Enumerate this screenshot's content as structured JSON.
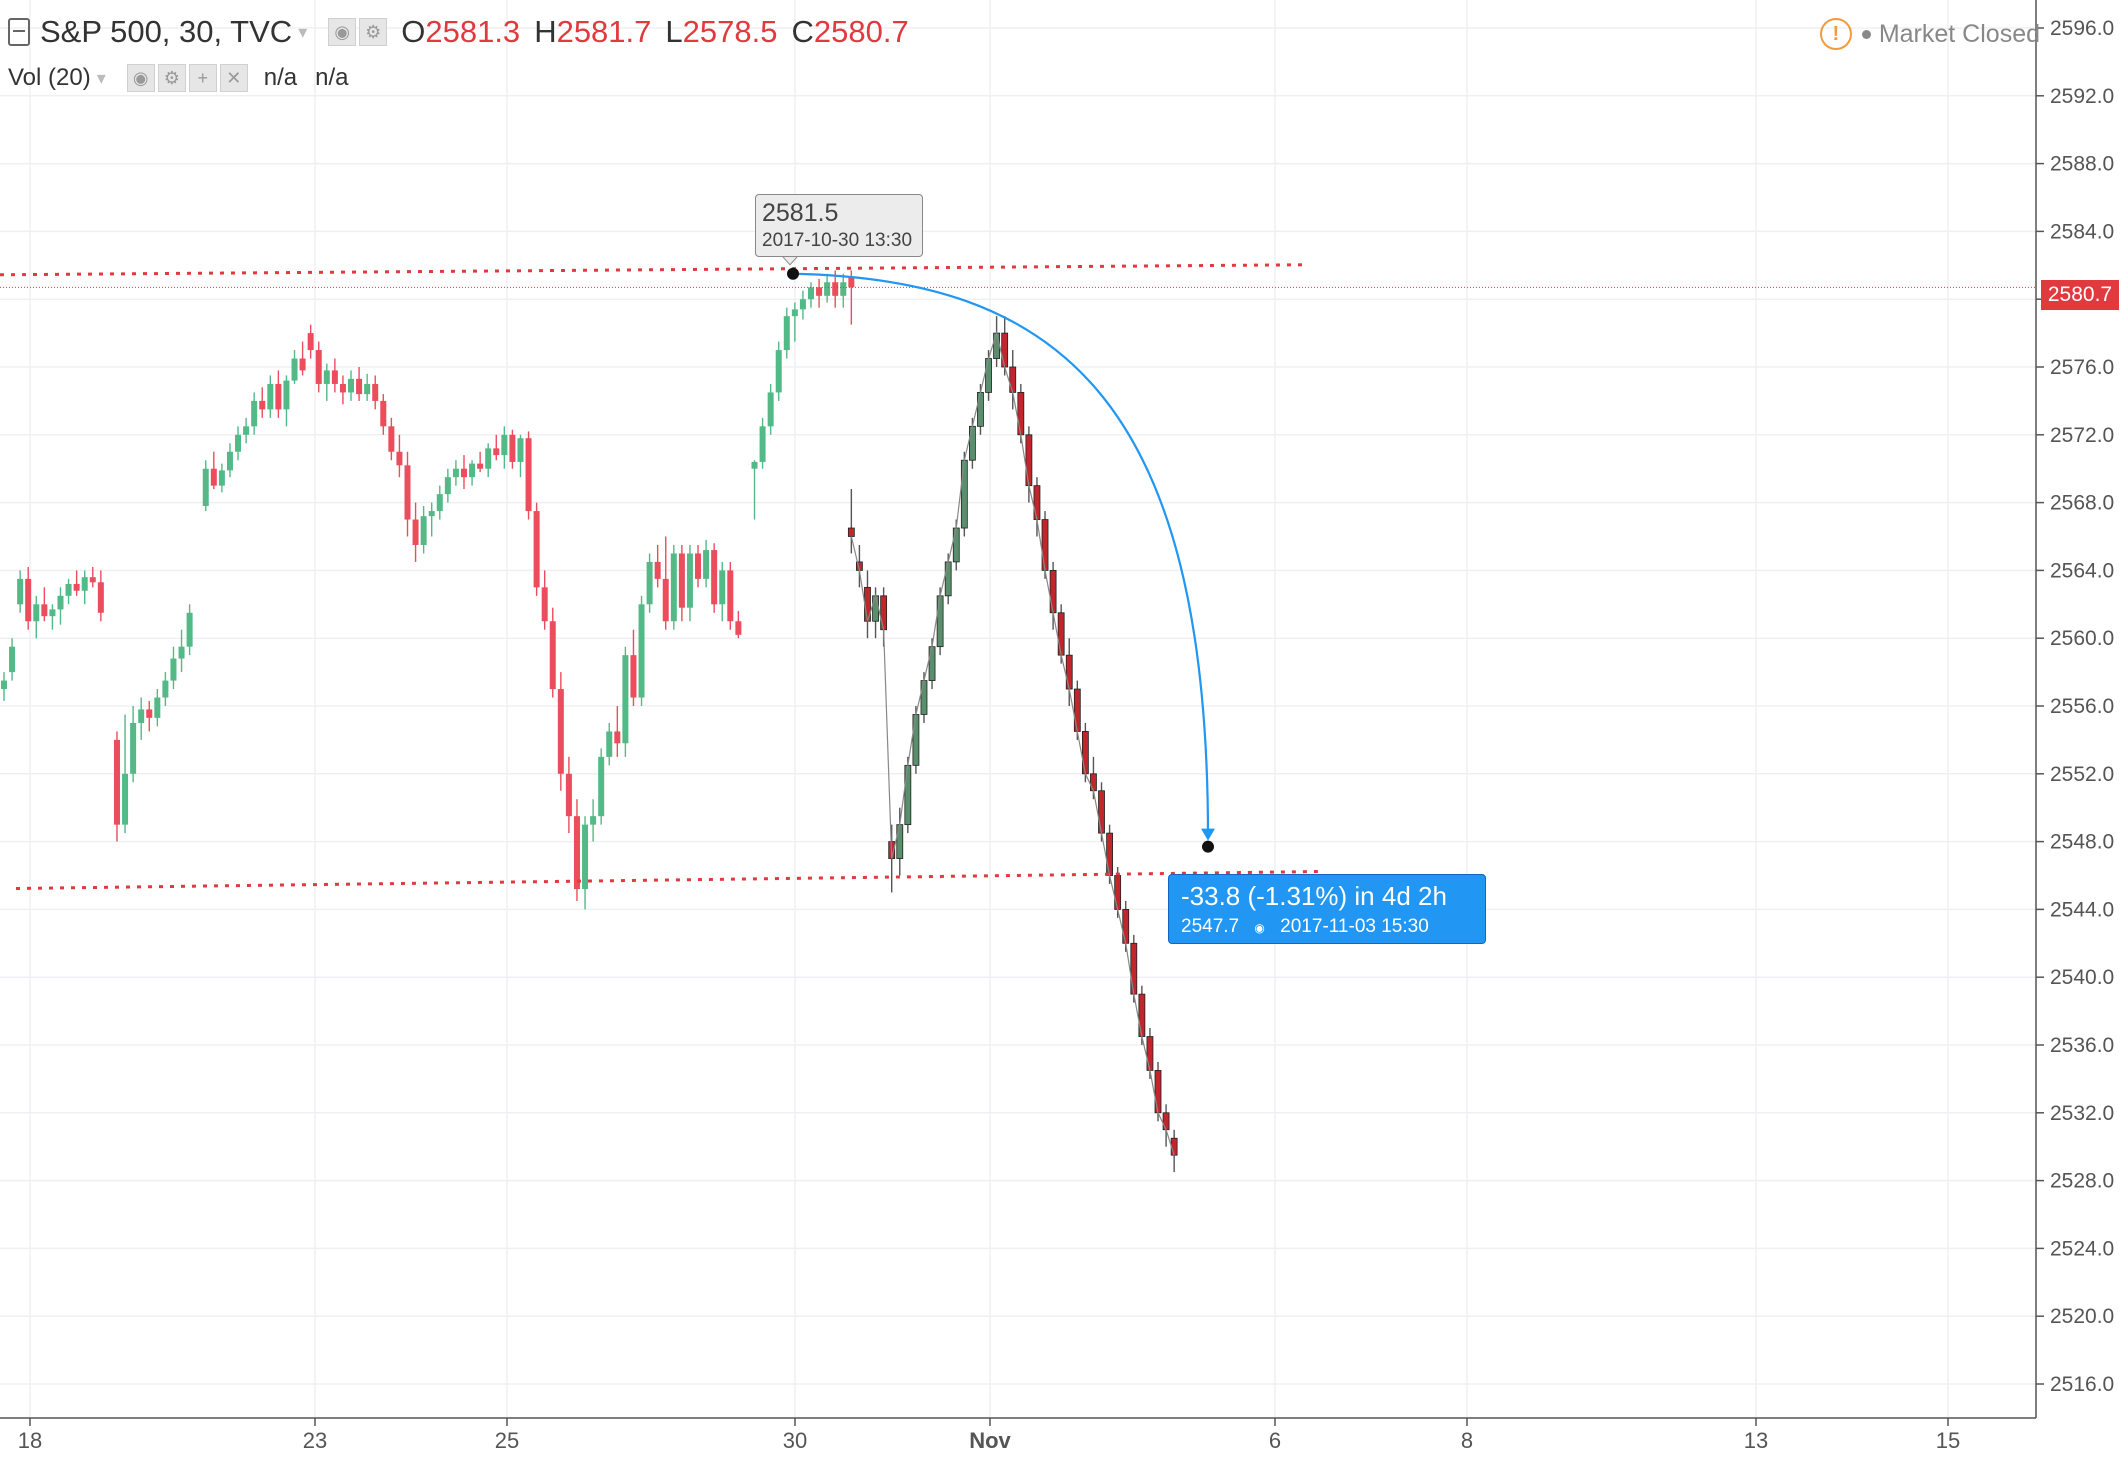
{
  "header": {
    "symbol": "S&P 500, 30, TVC",
    "ohlc": [
      {
        "key": "O",
        "value": "2581.3"
      },
      {
        "key": "H",
        "value": "2581.7"
      },
      {
        "key": "L",
        "value": "2578.5"
      },
      {
        "key": "C",
        "value": "2580.7"
      }
    ],
    "volume_label": "Vol (20)",
    "volume_values": [
      "n/a",
      "n/a"
    ],
    "market_status": "Market Closed"
  },
  "tooltip_high": {
    "price": "2581.5",
    "datetime": "2017-10-30 13:30"
  },
  "measure": {
    "change": "-33.8 (-1.31%) in 4d 2h",
    "price": "2547.7",
    "datetime": "2017-11-03  15:30"
  },
  "last_price": "2580.7",
  "colors": {
    "up": "#53b987",
    "down": "#eb4d5c",
    "down_dark": "#c0262b",
    "drawing_red": "#e0393e",
    "drawing_blue": "#2196f3"
  },
  "chart_data": {
    "type": "candlestick",
    "title": "S&P 500, 30, TVC",
    "yaxis_ticks": [
      "2596.0",
      "2592.0",
      "2588.0",
      "2584.0",
      "2580.0",
      "2576.0",
      "2572.0",
      "2568.0",
      "2564.0",
      "2560.0",
      "2556.0",
      "2552.0",
      "2548.0",
      "2544.0",
      "2540.0",
      "2536.0",
      "2532.0",
      "2528.0",
      "2524.0",
      "2520.0",
      "2516.0"
    ],
    "xaxis_ticks": [
      "18",
      "23",
      "25",
      "30",
      "Nov",
      "6",
      "8",
      "13",
      "15"
    ],
    "ylim": [
      2513,
      2598
    ],
    "grid": true,
    "candles": [
      {
        "t": 0,
        "o": 2557.0,
        "h": 2558.0,
        "l": 2556.3,
        "c": 2557.5
      },
      {
        "t": 1,
        "o": 2558.0,
        "h": 2560.0,
        "l": 2557.5,
        "c": 2559.5
      },
      {
        "t": 2,
        "o": 2562.0,
        "h": 2564.0,
        "l": 2561.5,
        "c": 2563.5
      },
      {
        "t": 3,
        "o": 2563.5,
        "h": 2564.2,
        "l": 2560.5,
        "c": 2561.0
      },
      {
        "t": 4,
        "o": 2561.0,
        "h": 2562.5,
        "l": 2560.0,
        "c": 2562.0
      },
      {
        "t": 5,
        "o": 2562.0,
        "h": 2563.0,
        "l": 2561.0,
        "c": 2561.3
      },
      {
        "t": 6,
        "o": 2561.3,
        "h": 2562.0,
        "l": 2560.5,
        "c": 2561.7
      },
      {
        "t": 7,
        "o": 2561.7,
        "h": 2563.0,
        "l": 2560.8,
        "c": 2562.5
      },
      {
        "t": 8,
        "o": 2562.5,
        "h": 2563.5,
        "l": 2562.0,
        "c": 2563.2
      },
      {
        "t": 9,
        "o": 2563.2,
        "h": 2564.0,
        "l": 2562.5,
        "c": 2562.8
      },
      {
        "t": 10,
        "o": 2562.8,
        "h": 2564.0,
        "l": 2562.0,
        "c": 2563.6
      },
      {
        "t": 11,
        "o": 2563.6,
        "h": 2564.2,
        "l": 2563.0,
        "c": 2563.3
      },
      {
        "t": 12,
        "o": 2563.3,
        "h": 2564.0,
        "l": 2561.0,
        "c": 2561.5
      },
      {
        "t": 14,
        "o": 2554.0,
        "h": 2554.5,
        "l": 2548.0,
        "c": 2549.0
      },
      {
        "t": 15,
        "o": 2549.0,
        "h": 2555.5,
        "l": 2548.5,
        "c": 2552.0
      },
      {
        "t": 16,
        "o": 2552.0,
        "h": 2556.0,
        "l": 2551.5,
        "c": 2555.0
      },
      {
        "t": 17,
        "o": 2555.0,
        "h": 2556.5,
        "l": 2554.0,
        "c": 2555.8
      },
      {
        "t": 18,
        "o": 2555.8,
        "h": 2556.3,
        "l": 2554.5,
        "c": 2555.3
      },
      {
        "t": 19,
        "o": 2555.3,
        "h": 2557.0,
        "l": 2554.8,
        "c": 2556.5
      },
      {
        "t": 20,
        "o": 2556.5,
        "h": 2558.0,
        "l": 2556.0,
        "c": 2557.5
      },
      {
        "t": 21,
        "o": 2557.5,
        "h": 2559.5,
        "l": 2557.0,
        "c": 2558.8
      },
      {
        "t": 22,
        "o": 2558.8,
        "h": 2560.5,
        "l": 2558.0,
        "c": 2559.5
      },
      {
        "t": 23,
        "o": 2559.5,
        "h": 2562.0,
        "l": 2559.0,
        "c": 2561.5
      },
      {
        "t": 25,
        "o": 2567.8,
        "h": 2570.5,
        "l": 2567.5,
        "c": 2570.0
      },
      {
        "t": 26,
        "o": 2570.0,
        "h": 2571.0,
        "l": 2568.8,
        "c": 2569.0
      },
      {
        "t": 27,
        "o": 2569.0,
        "h": 2570.3,
        "l": 2568.6,
        "c": 2569.9
      },
      {
        "t": 28,
        "o": 2569.9,
        "h": 2571.5,
        "l": 2569.5,
        "c": 2571.0
      },
      {
        "t": 29,
        "o": 2571.0,
        "h": 2572.5,
        "l": 2570.5,
        "c": 2572.0
      },
      {
        "t": 30,
        "o": 2572.0,
        "h": 2573.0,
        "l": 2571.5,
        "c": 2572.5
      },
      {
        "t": 31,
        "o": 2572.5,
        "h": 2574.5,
        "l": 2572.0,
        "c": 2574.0
      },
      {
        "t": 32,
        "o": 2574.0,
        "h": 2574.8,
        "l": 2573.0,
        "c": 2573.5
      },
      {
        "t": 33,
        "o": 2573.5,
        "h": 2575.5,
        "l": 2573.0,
        "c": 2575.0
      },
      {
        "t": 34,
        "o": 2575.0,
        "h": 2575.8,
        "l": 2573.0,
        "c": 2573.5
      },
      {
        "t": 35,
        "o": 2573.5,
        "h": 2575.5,
        "l": 2572.5,
        "c": 2575.2
      },
      {
        "t": 36,
        "o": 2575.2,
        "h": 2577.0,
        "l": 2575.0,
        "c": 2576.5
      },
      {
        "t": 37,
        "o": 2576.5,
        "h": 2577.5,
        "l": 2575.5,
        "c": 2575.8
      },
      {
        "t": 38,
        "o": 2578.0,
        "h": 2578.5,
        "l": 2576.5,
        "c": 2577.0
      },
      {
        "t": 39,
        "o": 2577.0,
        "h": 2577.5,
        "l": 2574.5,
        "c": 2575.0
      },
      {
        "t": 40,
        "o": 2575.0,
        "h": 2576.2,
        "l": 2574.0,
        "c": 2575.8
      },
      {
        "t": 41,
        "o": 2575.8,
        "h": 2576.5,
        "l": 2574.5,
        "c": 2575.0
      },
      {
        "t": 42,
        "o": 2575.0,
        "h": 2575.5,
        "l": 2573.8,
        "c": 2574.5
      },
      {
        "t": 43,
        "o": 2574.5,
        "h": 2575.8,
        "l": 2574.0,
        "c": 2575.3
      },
      {
        "t": 44,
        "o": 2575.3,
        "h": 2576.0,
        "l": 2574.0,
        "c": 2574.4
      },
      {
        "t": 45,
        "o": 2574.4,
        "h": 2575.6,
        "l": 2574.0,
        "c": 2575.0
      },
      {
        "t": 46,
        "o": 2575.0,
        "h": 2575.5,
        "l": 2573.5,
        "c": 2574.0
      },
      {
        "t": 47,
        "o": 2574.0,
        "h": 2574.4,
        "l": 2572.0,
        "c": 2572.5
      },
      {
        "t": 48,
        "o": 2572.5,
        "h": 2573.0,
        "l": 2570.5,
        "c": 2571.0
      },
      {
        "t": 49,
        "o": 2571.0,
        "h": 2572.0,
        "l": 2569.5,
        "c": 2570.2
      },
      {
        "t": 50,
        "o": 2570.2,
        "h": 2571.0,
        "l": 2566.0,
        "c": 2567.0
      },
      {
        "t": 51,
        "o": 2567.0,
        "h": 2568.0,
        "l": 2564.5,
        "c": 2565.5
      },
      {
        "t": 52,
        "o": 2565.5,
        "h": 2567.8,
        "l": 2565.0,
        "c": 2567.2
      },
      {
        "t": 53,
        "o": 2567.2,
        "h": 2568.0,
        "l": 2566.0,
        "c": 2567.5
      },
      {
        "t": 54,
        "o": 2567.5,
        "h": 2569.0,
        "l": 2567.0,
        "c": 2568.5
      },
      {
        "t": 55,
        "o": 2568.5,
        "h": 2570.0,
        "l": 2568.0,
        "c": 2569.5
      },
      {
        "t": 56,
        "o": 2569.5,
        "h": 2570.5,
        "l": 2569.0,
        "c": 2570.0
      },
      {
        "t": 57,
        "o": 2570.0,
        "h": 2570.8,
        "l": 2568.8,
        "c": 2569.5
      },
      {
        "t": 58,
        "o": 2569.5,
        "h": 2570.5,
        "l": 2569.0,
        "c": 2570.3
      },
      {
        "t": 59,
        "o": 2570.3,
        "h": 2571.0,
        "l": 2569.8,
        "c": 2570.0
      },
      {
        "t": 60,
        "o": 2570.0,
        "h": 2571.5,
        "l": 2569.5,
        "c": 2571.2
      },
      {
        "t": 61,
        "o": 2571.2,
        "h": 2572.0,
        "l": 2570.5,
        "c": 2570.8
      },
      {
        "t": 62,
        "o": 2570.8,
        "h": 2572.5,
        "l": 2570.0,
        "c": 2572.0
      },
      {
        "t": 63,
        "o": 2572.0,
        "h": 2572.3,
        "l": 2570.0,
        "c": 2570.4
      },
      {
        "t": 64,
        "o": 2570.4,
        "h": 2572.0,
        "l": 2569.5,
        "c": 2571.8
      },
      {
        "t": 65,
        "o": 2571.8,
        "h": 2572.2,
        "l": 2567.0,
        "c": 2567.5
      },
      {
        "t": 66,
        "o": 2567.5,
        "h": 2568.0,
        "l": 2562.5,
        "c": 2563.0
      },
      {
        "t": 67,
        "o": 2563.0,
        "h": 2564.0,
        "l": 2560.5,
        "c": 2561.0
      },
      {
        "t": 68,
        "o": 2561.0,
        "h": 2561.8,
        "l": 2556.5,
        "c": 2557.0
      },
      {
        "t": 69,
        "o": 2557.0,
        "h": 2558.0,
        "l": 2551.0,
        "c": 2552.0
      },
      {
        "t": 70,
        "o": 2552.0,
        "h": 2553.0,
        "l": 2548.5,
        "c": 2549.5
      },
      {
        "t": 71,
        "o": 2549.5,
        "h": 2550.5,
        "l": 2544.5,
        "c": 2545.2
      },
      {
        "t": 72,
        "o": 2545.2,
        "h": 2549.5,
        "l": 2544.0,
        "c": 2549.0
      },
      {
        "t": 73,
        "o": 2549.0,
        "h": 2550.5,
        "l": 2548.0,
        "c": 2549.5
      },
      {
        "t": 74,
        "o": 2549.5,
        "h": 2553.5,
        "l": 2549.0,
        "c": 2553.0
      },
      {
        "t": 75,
        "o": 2553.0,
        "h": 2555.0,
        "l": 2552.5,
        "c": 2554.5
      },
      {
        "t": 76,
        "o": 2554.5,
        "h": 2556.0,
        "l": 2553.0,
        "c": 2553.8
      },
      {
        "t": 77,
        "o": 2553.8,
        "h": 2559.5,
        "l": 2553.0,
        "c": 2559.0
      },
      {
        "t": 78,
        "o": 2559.0,
        "h": 2560.5,
        "l": 2556.0,
        "c": 2556.5
      },
      {
        "t": 79,
        "o": 2556.5,
        "h": 2562.5,
        "l": 2556.0,
        "c": 2562.0
      },
      {
        "t": 80,
        "o": 2562.0,
        "h": 2565.0,
        "l": 2561.5,
        "c": 2564.5
      },
      {
        "t": 81,
        "o": 2564.5,
        "h": 2565.5,
        "l": 2563.0,
        "c": 2563.5
      },
      {
        "t": 82,
        "o": 2563.5,
        "h": 2566.0,
        "l": 2560.5,
        "c": 2561.0
      },
      {
        "t": 83,
        "o": 2561.0,
        "h": 2565.5,
        "l": 2560.5,
        "c": 2565.0
      },
      {
        "t": 84,
        "o": 2565.0,
        "h": 2565.5,
        "l": 2561.0,
        "c": 2561.8
      },
      {
        "t": 85,
        "o": 2561.8,
        "h": 2565.5,
        "l": 2561.0,
        "c": 2565.0
      },
      {
        "t": 86,
        "o": 2565.0,
        "h": 2565.5,
        "l": 2563.0,
        "c": 2563.5
      },
      {
        "t": 87,
        "o": 2563.5,
        "h": 2565.8,
        "l": 2563.0,
        "c": 2565.2
      },
      {
        "t": 88,
        "o": 2565.2,
        "h": 2565.6,
        "l": 2561.5,
        "c": 2562.0
      },
      {
        "t": 89,
        "o": 2562.0,
        "h": 2564.5,
        "l": 2561.0,
        "c": 2564.0
      },
      {
        "t": 90,
        "o": 2564.0,
        "h": 2564.5,
        "l": 2560.5,
        "c": 2561.0
      },
      {
        "t": 91,
        "o": 2561.0,
        "h": 2561.6,
        "l": 2560.0,
        "c": 2560.2
      },
      {
        "t": 93,
        "o": 2570.0,
        "h": 2570.5,
        "l": 2567.0,
        "c": 2570.4
      },
      {
        "t": 94,
        "o": 2570.4,
        "h": 2573.0,
        "l": 2570.0,
        "c": 2572.5
      },
      {
        "t": 95,
        "o": 2572.5,
        "h": 2575.0,
        "l": 2572.0,
        "c": 2574.5
      },
      {
        "t": 96,
        "o": 2574.5,
        "h": 2577.5,
        "l": 2574.0,
        "c": 2577.0
      },
      {
        "t": 97,
        "o": 2577.0,
        "h": 2579.5,
        "l": 2576.5,
        "c": 2579.0
      },
      {
        "t": 98,
        "o": 2579.0,
        "h": 2579.8,
        "l": 2577.5,
        "c": 2579.4
      },
      {
        "t": 99,
        "o": 2579.4,
        "h": 2580.5,
        "l": 2578.8,
        "c": 2580.0
      },
      {
        "t": 100,
        "o": 2580.0,
        "h": 2581.0,
        "l": 2579.5,
        "c": 2580.7
      },
      {
        "t": 101,
        "o": 2580.7,
        "h": 2581.2,
        "l": 2579.5,
        "c": 2580.2
      },
      {
        "t": 102,
        "o": 2580.2,
        "h": 2581.5,
        "l": 2579.8,
        "c": 2581.0
      },
      {
        "t": 103,
        "o": 2581.0,
        "h": 2581.7,
        "l": 2579.5,
        "c": 2580.2
      },
      {
        "t": 104,
        "o": 2580.2,
        "h": 2581.5,
        "l": 2579.5,
        "c": 2581.0
      },
      {
        "t": 105,
        "o": 2581.3,
        "h": 2581.7,
        "l": 2578.5,
        "c": 2580.7
      }
    ],
    "intraday_2": [
      {
        "t": 105,
        "o": 2566.5,
        "h": 2568.8,
        "l": 2565.0,
        "c": 2566.0
      },
      {
        "t": 106,
        "o": 2564.5,
        "h": 2565.5,
        "l": 2563.0,
        "c": 2564.0
      },
      {
        "t": 107,
        "o": 2563.0,
        "h": 2564.0,
        "l": 2560.0,
        "c": 2561.0
      },
      {
        "t": 108,
        "o": 2561.0,
        "h": 2563.0,
        "l": 2560.0,
        "c": 2562.5
      },
      {
        "t": 109,
        "o": 2562.5,
        "h": 2563.0,
        "l": 2559.5,
        "c": 2560.5
      },
      {
        "t": 110,
        "o": 2548.0,
        "h": 2549.0,
        "l": 2545.0,
        "c": 2547.0
      },
      {
        "t": 111,
        "o": 2547.0,
        "h": 2550.0,
        "l": 2546.0,
        "c": 2549.0
      },
      {
        "t": 112,
        "o": 2549.0,
        "h": 2553.0,
        "l": 2548.5,
        "c": 2552.5
      },
      {
        "t": 113,
        "o": 2552.5,
        "h": 2556.0,
        "l": 2552.0,
        "c": 2555.5
      },
      {
        "t": 114,
        "o": 2555.5,
        "h": 2558.0,
        "l": 2555.0,
        "c": 2557.5
      },
      {
        "t": 115,
        "o": 2557.5,
        "h": 2560.0,
        "l": 2557.0,
        "c": 2559.5
      },
      {
        "t": 116,
        "o": 2559.5,
        "h": 2563.0,
        "l": 2559.0,
        "c": 2562.5
      },
      {
        "t": 117,
        "o": 2562.5,
        "h": 2565.0,
        "l": 2562.0,
        "c": 2564.5
      },
      {
        "t": 118,
        "o": 2564.5,
        "h": 2567.0,
        "l": 2564.0,
        "c": 2566.5
      },
      {
        "t": 119,
        "o": 2566.5,
        "h": 2571.0,
        "l": 2566.0,
        "c": 2570.5
      },
      {
        "t": 120,
        "o": 2570.5,
        "h": 2573.0,
        "l": 2570.0,
        "c": 2572.5
      },
      {
        "t": 121,
        "o": 2572.5,
        "h": 2575.0,
        "l": 2572.0,
        "c": 2574.5
      },
      {
        "t": 122,
        "o": 2574.5,
        "h": 2577.0,
        "l": 2574.0,
        "c": 2576.5
      },
      {
        "t": 123,
        "o": 2576.5,
        "h": 2579.0,
        "l": 2576.0,
        "c": 2578.0
      },
      {
        "t": 124,
        "o": 2578.0,
        "h": 2579.0,
        "l": 2575.5,
        "c": 2576.0
      },
      {
        "t": 125,
        "o": 2576.0,
        "h": 2577.0,
        "l": 2573.5,
        "c": 2574.5
      },
      {
        "t": 126,
        "o": 2574.5,
        "h": 2575.0,
        "l": 2571.5,
        "c": 2572.0
      },
      {
        "t": 127,
        "o": 2572.0,
        "h": 2572.5,
        "l": 2568.0,
        "c": 2569.0
      },
      {
        "t": 128,
        "o": 2569.0,
        "h": 2569.5,
        "l": 2566.0,
        "c": 2567.0
      },
      {
        "t": 129,
        "o": 2567.0,
        "h": 2567.5,
        "l": 2563.5,
        "c": 2564.0
      },
      {
        "t": 130,
        "o": 2564.0,
        "h": 2564.5,
        "l": 2560.5,
        "c": 2561.5
      },
      {
        "t": 131,
        "o": 2561.5,
        "h": 2562.0,
        "l": 2558.5,
        "c": 2559.0
      },
      {
        "t": 132,
        "o": 2559.0,
        "h": 2560.0,
        "l": 2556.0,
        "c": 2557.0
      },
      {
        "t": 133,
        "o": 2557.0,
        "h": 2557.5,
        "l": 2554.0,
        "c": 2554.5
      },
      {
        "t": 134,
        "o": 2554.5,
        "h": 2555.0,
        "l": 2551.5,
        "c": 2552.0
      },
      {
        "t": 135,
        "o": 2552.0,
        "h": 2553.0,
        "l": 2550.5,
        "c": 2551.0
      },
      {
        "t": 136,
        "o": 2551.0,
        "h": 2551.5,
        "l": 2548.0,
        "c": 2548.5
      },
      {
        "t": 137,
        "o": 2548.5,
        "h": 2549.0,
        "l": 2545.5,
        "c": 2546.0
      },
      {
        "t": 138,
        "o": 2546.0,
        "h": 2546.5,
        "l": 2543.5,
        "c": 2544.0
      },
      {
        "t": 139,
        "o": 2544.0,
        "h": 2544.5,
        "l": 2541.5,
        "c": 2542.0
      },
      {
        "t": 140,
        "o": 2542.0,
        "h": 2542.5,
        "l": 2538.5,
        "c": 2539.0
      },
      {
        "t": 141,
        "o": 2539.0,
        "h": 2539.5,
        "l": 2536.0,
        "c": 2536.5
      },
      {
        "t": 142,
        "o": 2536.5,
        "h": 2537.0,
        "l": 2534.0,
        "c": 2534.5
      },
      {
        "t": 143,
        "o": 2534.5,
        "h": 2535.0,
        "l": 2531.5,
        "c": 2532.0
      },
      {
        "t": 144,
        "o": 2532.0,
        "h": 2532.5,
        "l": 2530.0,
        "c": 2531.0
      },
      {
        "t": 145,
        "o": 2530.5,
        "h": 2531.0,
        "l": 2528.5,
        "c": 2529.5
      }
    ],
    "drawings": {
      "high_level": 2581.5,
      "low_level": 2546.0,
      "arc_from": {
        "price": 2581.5,
        "datetime": "2017-10-30 13:30"
      },
      "arc_to": {
        "price": 2547.7,
        "datetime": "2017-11-03 15:30"
      }
    }
  }
}
